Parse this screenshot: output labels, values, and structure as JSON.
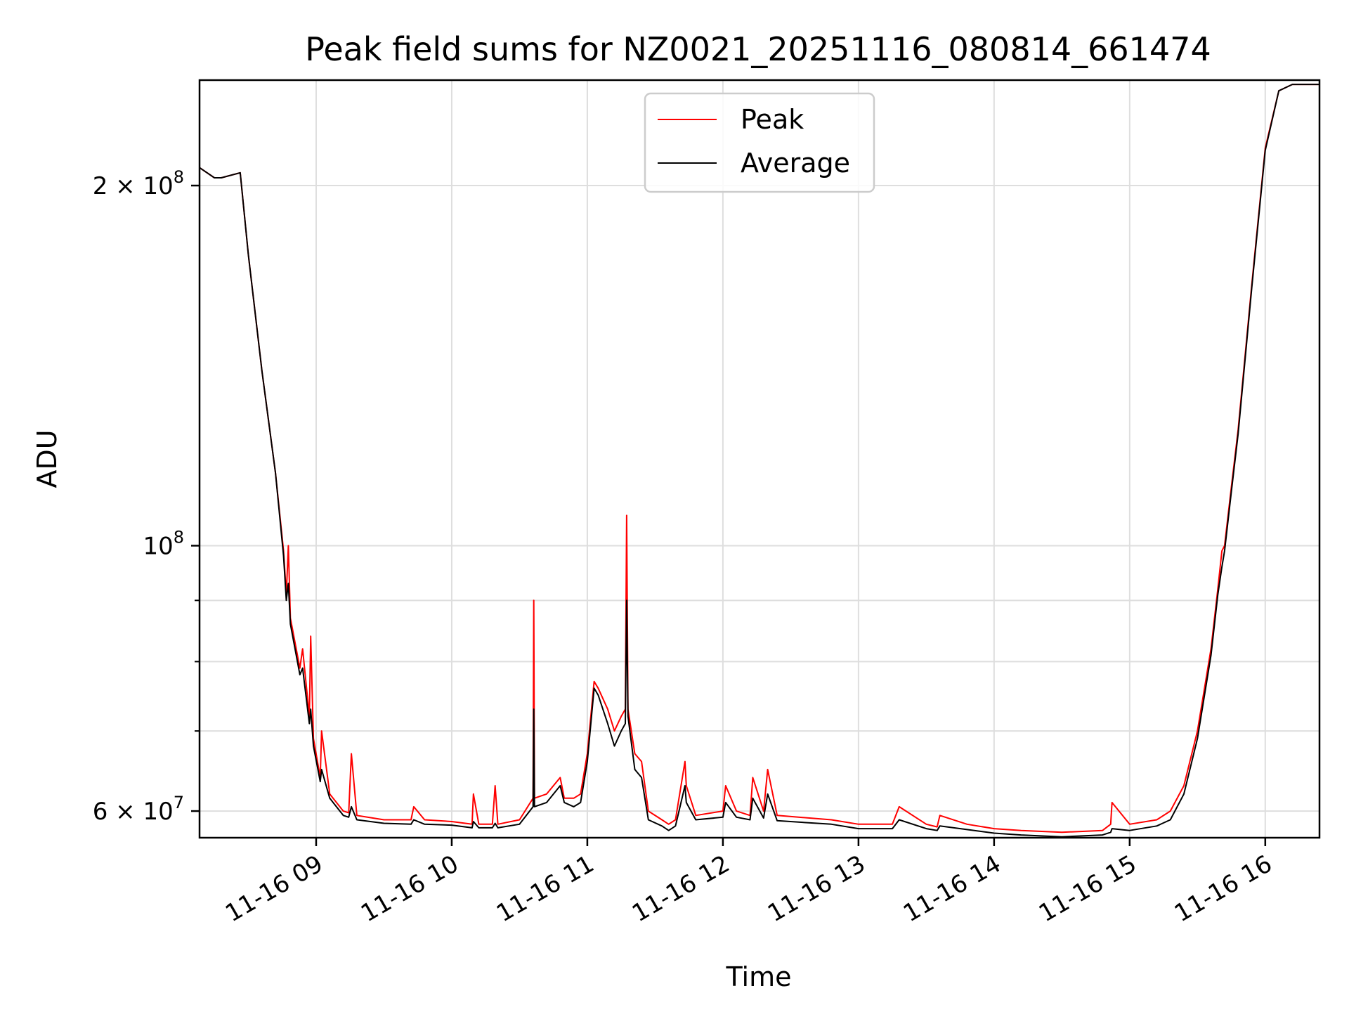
{
  "chart_data": {
    "type": "line",
    "title": "Peak field sums for NZ0021_20251116_080814_661474",
    "xlabel": "Time",
    "ylabel": "ADU",
    "yscale": "log",
    "ylim": [
      57000000,
      245000000
    ],
    "xlim": [
      8.14,
      16.4
    ],
    "grid": true,
    "legend_position": "top-center",
    "x_ticks": [
      {
        "value": 9,
        "label": "11-16 09"
      },
      {
        "value": 10,
        "label": "11-16 10"
      },
      {
        "value": 11,
        "label": "11-16 11"
      },
      {
        "value": 12,
        "label": "11-16 12"
      },
      {
        "value": 13,
        "label": "11-16 13"
      },
      {
        "value": 14,
        "label": "11-16 14"
      },
      {
        "value": 15,
        "label": "11-16 15"
      },
      {
        "value": 16,
        "label": "11-16 16"
      }
    ],
    "y_ticks": [
      {
        "value": 200000000,
        "mantissa": "2 × 10",
        "exp": "8"
      },
      {
        "value": 100000000,
        "mantissa": "10",
        "exp": "8"
      },
      {
        "value": 60000000,
        "mantissa": "6 × 10",
        "exp": "7"
      }
    ],
    "y_minor_ticks": [
      70000000,
      80000000,
      90000000
    ],
    "series": [
      {
        "name": "Peak",
        "color": "#ff0000",
        "x": [
          8.14,
          8.25,
          8.3,
          8.44,
          8.5,
          8.6,
          8.7,
          8.76,
          8.78,
          8.795,
          8.81,
          8.88,
          8.9,
          8.95,
          8.96,
          8.98,
          9.03,
          9.04,
          9.1,
          9.2,
          9.24,
          9.26,
          9.3,
          9.5,
          9.7,
          9.72,
          9.8,
          10.0,
          10.15,
          10.16,
          10.2,
          10.3,
          10.32,
          10.34,
          10.5,
          10.6,
          10.605,
          10.61,
          10.7,
          10.8,
          10.83,
          10.9,
          10.95,
          11.0,
          11.05,
          11.08,
          11.15,
          11.2,
          11.25,
          11.28,
          11.29,
          11.3,
          11.35,
          11.4,
          11.45,
          11.55,
          11.6,
          11.65,
          11.72,
          11.73,
          11.8,
          12.0,
          12.02,
          12.1,
          12.2,
          12.22,
          12.3,
          12.33,
          12.4,
          12.8,
          13.0,
          13.25,
          13.3,
          13.5,
          13.58,
          13.6,
          13.8,
          14.0,
          14.2,
          14.5,
          14.8,
          14.86,
          14.87,
          15.0,
          15.2,
          15.3,
          15.4,
          15.5,
          15.6,
          15.65,
          15.68,
          15.7,
          15.75,
          15.8,
          15.9,
          16.0,
          16.1,
          16.2,
          16.4
        ],
        "y": [
          207000000,
          203000000,
          203000000,
          205000000,
          175000000,
          140000000,
          115000000,
          99000000,
          91000000,
          100000000,
          87000000,
          79000000,
          82000000,
          72000000,
          84000000,
          69000000,
          64000000,
          70000000,
          62000000,
          60000000,
          59800000,
          67000000,
          59500000,
          59000000,
          59000000,
          60500000,
          59000000,
          58800000,
          58500000,
          62000000,
          58500000,
          58500000,
          63000000,
          58500000,
          59000000,
          61500000,
          90000000,
          61500000,
          62000000,
          64000000,
          61500000,
          61500000,
          62000000,
          67000000,
          77000000,
          76000000,
          73000000,
          70000000,
          72000000,
          73000000,
          106000000,
          73000000,
          67000000,
          66000000,
          60000000,
          59000000,
          58500000,
          59000000,
          66000000,
          63000000,
          59500000,
          60000000,
          63000000,
          60000000,
          59500000,
          64000000,
          60000000,
          65000000,
          59500000,
          59000000,
          58500000,
          58500000,
          60500000,
          58500000,
          58200000,
          59500000,
          58500000,
          58000000,
          57800000,
          57600000,
          57800000,
          58500000,
          61000000,
          58500000,
          59000000,
          60000000,
          63000000,
          70000000,
          82000000,
          92000000,
          99000000,
          100000000,
          112000000,
          125000000,
          165000000,
          215000000,
          240000000,
          243000000,
          243000000
        ]
      },
      {
        "name": "Average",
        "color": "#000000",
        "x": [
          8.14,
          8.25,
          8.3,
          8.44,
          8.5,
          8.6,
          8.7,
          8.76,
          8.78,
          8.795,
          8.81,
          8.88,
          8.9,
          8.95,
          8.96,
          8.98,
          9.03,
          9.04,
          9.1,
          9.2,
          9.24,
          9.26,
          9.3,
          9.5,
          9.7,
          9.72,
          9.8,
          10.0,
          10.15,
          10.16,
          10.2,
          10.3,
          10.32,
          10.34,
          10.5,
          10.6,
          10.605,
          10.61,
          10.7,
          10.8,
          10.83,
          10.9,
          10.95,
          11.0,
          11.05,
          11.08,
          11.15,
          11.2,
          11.25,
          11.28,
          11.29,
          11.3,
          11.35,
          11.4,
          11.45,
          11.55,
          11.6,
          11.65,
          11.72,
          11.73,
          11.8,
          12.0,
          12.02,
          12.1,
          12.2,
          12.22,
          12.3,
          12.33,
          12.4,
          12.8,
          13.0,
          13.25,
          13.3,
          13.5,
          13.58,
          13.6,
          13.8,
          14.0,
          14.2,
          14.5,
          14.8,
          14.86,
          14.87,
          15.0,
          15.2,
          15.3,
          15.4,
          15.5,
          15.6,
          15.65,
          15.68,
          15.7,
          15.75,
          15.8,
          15.9,
          16.0,
          16.1,
          16.2,
          16.4
        ],
        "y": [
          207000000,
          203000000,
          203000000,
          205000000,
          175000000,
          140000000,
          115000000,
          98000000,
          90000000,
          93000000,
          86000000,
          78000000,
          79000000,
          71000000,
          73000000,
          68000000,
          63500000,
          65000000,
          61500000,
          59500000,
          59300000,
          60500000,
          59000000,
          58600000,
          58500000,
          59000000,
          58500000,
          58400000,
          58100000,
          58800000,
          58100000,
          58100000,
          58600000,
          58100000,
          58500000,
          60500000,
          73000000,
          60500000,
          61000000,
          63000000,
          61000000,
          60500000,
          61000000,
          66000000,
          76000000,
          75000000,
          71000000,
          68000000,
          70000000,
          71000000,
          90000000,
          72000000,
          65000000,
          64000000,
          59000000,
          58300000,
          57800000,
          58300000,
          63000000,
          61000000,
          59000000,
          59300000,
          61000000,
          59300000,
          59000000,
          61500000,
          59200000,
          62000000,
          58900000,
          58500000,
          58000000,
          58000000,
          59000000,
          58000000,
          57800000,
          58300000,
          57900000,
          57500000,
          57300000,
          57100000,
          57300000,
          57600000,
          58000000,
          57800000,
          58300000,
          59000000,
          62000000,
          69000000,
          81000000,
          91000000,
          96000000,
          99000000,
          111000000,
          124000000,
          164000000,
          214000000,
          240000000,
          243000000,
          243000000
        ]
      }
    ]
  }
}
